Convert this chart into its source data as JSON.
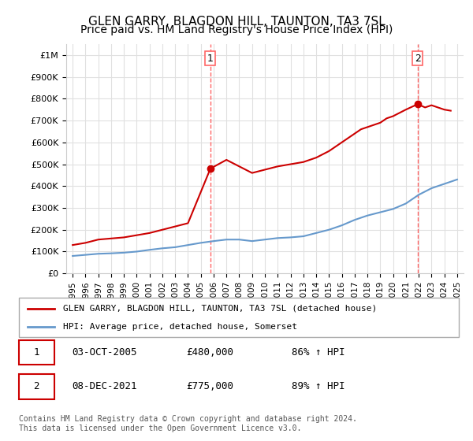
{
  "title": "GLEN GARRY, BLAGDON HILL, TAUNTON, TA3 7SL",
  "subtitle": "Price paid vs. HM Land Registry's House Price Index (HPI)",
  "title_fontsize": 11,
  "subtitle_fontsize": 10,
  "background_color": "#ffffff",
  "plot_bg_color": "#ffffff",
  "grid_color": "#e0e0e0",
  "ylabel_color": "#333333",
  "red_color": "#cc0000",
  "blue_color": "#6699cc",
  "dashed_color": "#ff6666",
  "marker1_x": 2005.75,
  "marker1_y": 480000,
  "marker1_label": "1",
  "marker2_x": 2021.92,
  "marker2_y": 775000,
  "marker2_label": "2",
  "ylim_min": 0,
  "ylim_max": 1050000,
  "xlim_min": 1994.5,
  "xlim_max": 2025.5,
  "yticks": [
    0,
    100000,
    200000,
    300000,
    400000,
    500000,
    600000,
    700000,
    800000,
    900000,
    1000000
  ],
  "ytick_labels": [
    "£0",
    "£100K",
    "£200K",
    "£300K",
    "£400K",
    "£500K",
    "£600K",
    "£700K",
    "£800K",
    "£900K",
    "£1M"
  ],
  "xtick_years": [
    1995,
    1996,
    1997,
    1998,
    1999,
    2000,
    2001,
    2002,
    2003,
    2004,
    2005,
    2006,
    2007,
    2008,
    2009,
    2010,
    2011,
    2012,
    2013,
    2014,
    2015,
    2016,
    2017,
    2018,
    2019,
    2020,
    2021,
    2022,
    2023,
    2024,
    2025
  ],
  "legend_line1": "GLEN GARRY, BLAGDON HILL, TAUNTON, TA3 7SL (detached house)",
  "legend_line2": "HPI: Average price, detached house, Somerset",
  "table_data": [
    [
      "1",
      "03-OCT-2005",
      "£480,000",
      "86% ↑ HPI"
    ],
    [
      "2",
      "08-DEC-2021",
      "£775,000",
      "89% ↑ HPI"
    ]
  ],
  "footer": "Contains HM Land Registry data © Crown copyright and database right 2024.\nThis data is licensed under the Open Government Licence v3.0.",
  "red_x": [
    1995,
    1996,
    1997,
    1998,
    1999,
    2000,
    2001,
    2002,
    2003,
    2004,
    2005.75,
    2007,
    2008,
    2009,
    2010,
    2011,
    2012,
    2013,
    2014,
    2015,
    2016,
    2017,
    2017.5,
    2018,
    2018.5,
    2019,
    2019.5,
    2020,
    2020.5,
    2021,
    2021.92,
    2022.5,
    2023,
    2023.5,
    2024,
    2024.5
  ],
  "red_y": [
    130000,
    140000,
    155000,
    160000,
    165000,
    175000,
    185000,
    200000,
    215000,
    230000,
    480000,
    520000,
    490000,
    460000,
    475000,
    490000,
    500000,
    510000,
    530000,
    560000,
    600000,
    640000,
    660000,
    670000,
    680000,
    690000,
    710000,
    720000,
    735000,
    750000,
    775000,
    760000,
    770000,
    760000,
    750000,
    745000
  ],
  "blue_x": [
    1995,
    1996,
    1997,
    1998,
    1999,
    2000,
    2001,
    2002,
    2003,
    2004,
    2005,
    2006,
    2007,
    2008,
    2009,
    2010,
    2011,
    2012,
    2013,
    2014,
    2015,
    2016,
    2017,
    2018,
    2019,
    2020,
    2021,
    2022,
    2023,
    2024,
    2025
  ],
  "blue_y": [
    80000,
    85000,
    90000,
    92000,
    95000,
    100000,
    108000,
    115000,
    120000,
    130000,
    140000,
    148000,
    155000,
    155000,
    148000,
    155000,
    162000,
    165000,
    170000,
    185000,
    200000,
    220000,
    245000,
    265000,
    280000,
    295000,
    320000,
    360000,
    390000,
    410000,
    430000
  ]
}
